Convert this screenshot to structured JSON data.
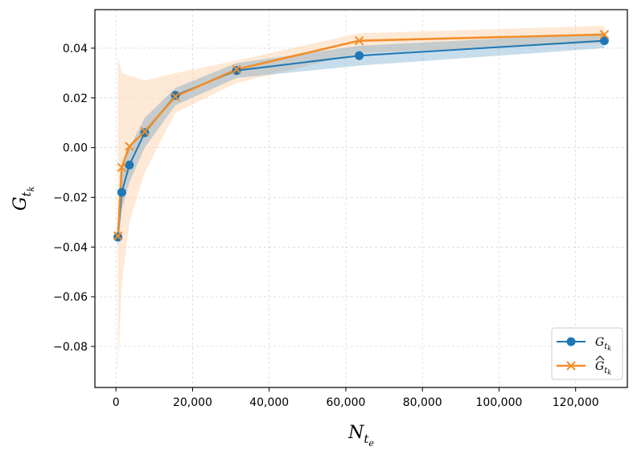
{
  "chart_data": {
    "type": "line",
    "title": "",
    "xlabel": {
      "base": "N",
      "sub": "t",
      "subsub": "e"
    },
    "ylabel": {
      "base": "G",
      "sub": "t",
      "subsub": "k"
    },
    "xlim": [
      -5500,
      133500
    ],
    "ylim": [
      -0.0965,
      0.0555
    ],
    "x_ticks": [
      0,
      20000,
      40000,
      60000,
      80000,
      100000,
      120000
    ],
    "x_tick_labels": [
      "0",
      "20,000",
      "40,000",
      "60,000",
      "80,000",
      "100,000",
      "120,000"
    ],
    "y_ticks": [
      -0.08,
      -0.06,
      -0.04,
      -0.02,
      0.0,
      0.02,
      0.04
    ],
    "y_tick_labels": [
      "−0.08",
      "−0.06",
      "−0.04",
      "−0.02",
      "0.00",
      "0.02",
      "0.04"
    ],
    "grid": true,
    "legend_position": "bottom-right",
    "x": [
      500,
      1500,
      3500,
      7500,
      15500,
      31500,
      63500,
      127500
    ],
    "series": [
      {
        "name": "G_tk",
        "legend": {
          "base": "G",
          "sub": "t",
          "subsub": "k",
          "hat": false
        },
        "marker": "circle",
        "color": "#1f77b4",
        "band_color": "#1f77b4",
        "values": [
          -0.036,
          -0.018,
          -0.007,
          0.006,
          0.021,
          0.031,
          0.037,
          0.043
        ],
        "lower": [
          -0.041,
          -0.025,
          -0.014,
          0.0,
          0.017,
          0.028,
          0.033,
          0.04
        ],
        "upper": [
          -0.031,
          -0.011,
          0.0,
          0.012,
          0.024,
          0.034,
          0.041,
          0.046
        ]
      },
      {
        "name": "G_tk_hat",
        "legend": {
          "base": "G",
          "sub": "t",
          "subsub": "k",
          "hat": true
        },
        "marker": "x",
        "color": "#f28e2b",
        "band_color": "#fdd7b4",
        "values": [
          -0.0355,
          -0.008,
          0.0005,
          0.0065,
          0.0205,
          0.0315,
          0.043,
          0.0455
        ],
        "lower": [
          -0.09,
          -0.055,
          -0.03,
          -0.01,
          0.014,
          0.026,
          0.038,
          0.042
        ],
        "upper": [
          0.037,
          0.03,
          0.029,
          0.027,
          0.03,
          0.035,
          0.046,
          0.049
        ]
      }
    ]
  }
}
